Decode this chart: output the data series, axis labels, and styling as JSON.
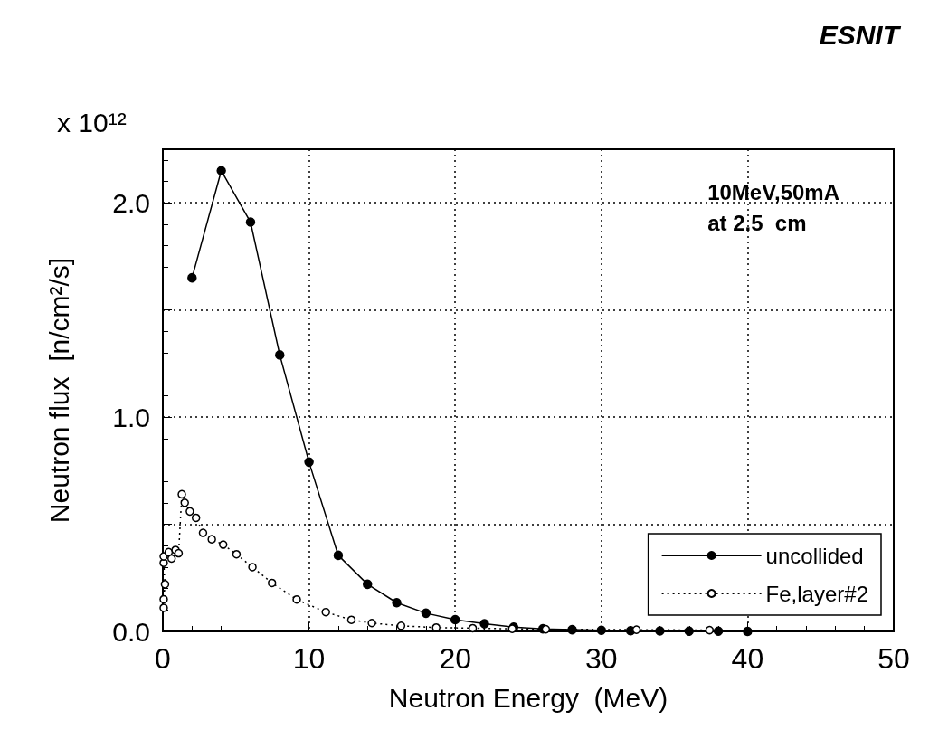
{
  "chart_data": {
    "type": "line",
    "title": "ESNIT",
    "xlabel": "Neutron Energy  (MeV)",
    "ylabel": "Neutron flux  [n/cm²/s]",
    "annotations": [
      "x 10¹²",
      "10MeV,50mA\nat 2.5  cm"
    ],
    "series": [
      {
        "name": "uncollided",
        "color": "#000000",
        "line_style": "solid",
        "x": [
          2,
          4,
          6,
          8,
          10,
          12,
          14,
          16,
          18,
          20,
          22,
          24,
          26,
          28,
          30,
          32,
          34,
          36,
          38,
          40
        ],
        "values": [
          1.65,
          2.15,
          1.91,
          1.29,
          0.79,
          0.355,
          0.22,
          0.134,
          0.085,
          0.055,
          0.036,
          0.02,
          0.012,
          0.008,
          0.005,
          0.003,
          0.002,
          0.001,
          0.001,
          0
        ]
      },
      {
        "name": "Fe,layer#2",
        "color": "#000000",
        "line_style": "dotted",
        "x": [
          0.06,
          0.06,
          0.15,
          0.06,
          0.06,
          0.4,
          0.6,
          0.87,
          1.08,
          1.3,
          1.5,
          1.85,
          2.27,
          2.75,
          3.35,
          4.13,
          5.04,
          6.13,
          7.47,
          9.16,
          11.15,
          12.9,
          14.3,
          16.3,
          18.7,
          21.2,
          23.9,
          26.2,
          32.4,
          37.4
        ],
        "values": [
          0.11,
          0.15,
          0.22,
          0.32,
          0.35,
          0.37,
          0.34,
          0.38,
          0.365,
          0.64,
          0.6,
          0.56,
          0.53,
          0.46,
          0.43,
          0.405,
          0.36,
          0.3,
          0.226,
          0.149,
          0.09,
          0.054,
          0.039,
          0.026,
          0.018,
          0.015,
          0.012,
          0.01,
          0.008,
          0.006
        ]
      }
    ],
    "xlim": [
      0,
      50
    ],
    "xticks": [
      0,
      10,
      20,
      30,
      40,
      50
    ],
    "ylim": [
      0,
      2.25
    ],
    "yticks": [
      {
        "value": 0,
        "label": "0.0"
      },
      {
        "value": 0.5,
        "label": null
      },
      {
        "value": 1,
        "label": "1.0"
      },
      {
        "value": 1.5,
        "label": null
      },
      {
        "value": 2,
        "label": "2.0"
      }
    ],
    "grid": true,
    "legend": "bottom right",
    "marker": "circle"
  }
}
